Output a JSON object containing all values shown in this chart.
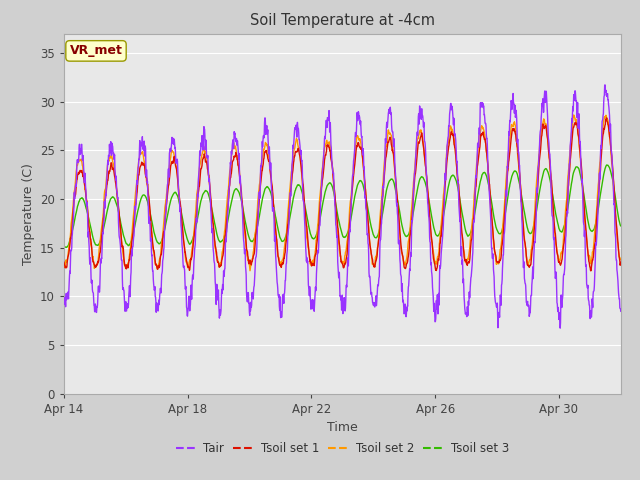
{
  "title": "Soil Temperature at -4cm",
  "xlabel": "Time",
  "ylabel": "Temperature (C)",
  "ylim": [
    0,
    37
  ],
  "yticks": [
    0,
    5,
    10,
    15,
    20,
    25,
    30,
    35
  ],
  "xstart": 0,
  "xend": 18,
  "xtick_positions": [
    0,
    4,
    8,
    12,
    16
  ],
  "xtick_labels": [
    "Apr 14",
    "Apr 18",
    "Apr 22",
    "Apr 26",
    "Apr 30"
  ],
  "fig_bg_color": "#d0d0d0",
  "plot_bg": "#e8e8e8",
  "grid_color": "#ffffff",
  "annotation_text": "VR_met",
  "annotation_bg": "#ffffcc",
  "annotation_edge": "#999900",
  "annotation_text_color": "#880000",
  "colors": {
    "Tair": "#9933ff",
    "Tsoil1": "#dd1100",
    "Tsoil2": "#ff9900",
    "Tsoil3": "#33bb00"
  },
  "legend_labels": [
    "Tair",
    "Tsoil set 1",
    "Tsoil set 2",
    "Tsoil set 3"
  ],
  "line_width": 1.0
}
